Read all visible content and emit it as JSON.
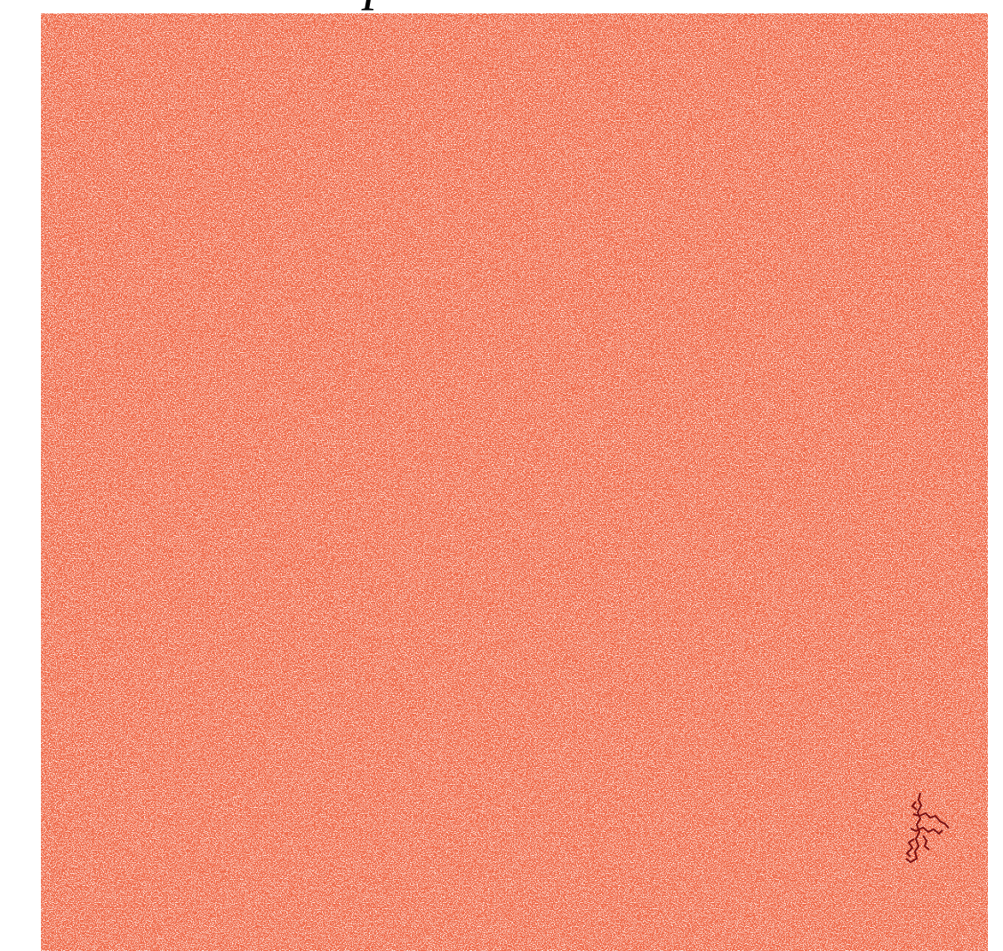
{
  "title": "p"
}
